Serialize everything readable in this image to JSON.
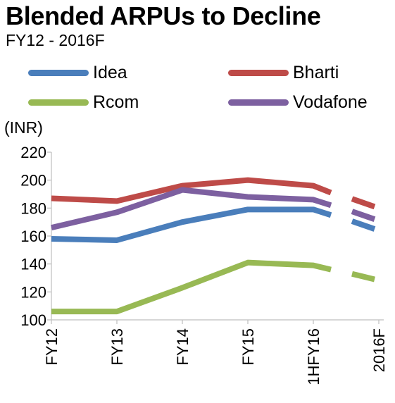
{
  "chart_data": {
    "type": "line",
    "title": "Blended ARPUs to Decline",
    "subtitle": "FY12 - 2016F",
    "ylabel": "(INR)",
    "xlabel": "",
    "ylim": [
      100,
      220
    ],
    "yticks": [
      100,
      120,
      140,
      160,
      180,
      200,
      220
    ],
    "categories": [
      "FY12",
      "FY13",
      "FY14",
      "FY15",
      "1HFY16",
      "2016F"
    ],
    "grid": false,
    "legend_position": "top",
    "series": [
      {
        "name": "Idea",
        "color": "#4a7ebb",
        "values": [
          158,
          157,
          170,
          179,
          179,
          165
        ],
        "extra": {
          "after_index": 4,
          "value": 175
        }
      },
      {
        "name": "Bharti",
        "color": "#be4b48",
        "values": [
          187,
          185,
          196,
          200,
          196,
          181
        ],
        "extra": {
          "after_index": 4,
          "value": 191
        }
      },
      {
        "name": "Rcom",
        "color": "#98b954",
        "values": [
          106,
          106,
          123,
          141,
          139,
          129
        ],
        "extra": {
          "after_index": 4,
          "value": 136
        }
      },
      {
        "name": "Vodafone",
        "color": "#7d60a0",
        "values": [
          166,
          177,
          193,
          188,
          186,
          172
        ],
        "extra": {
          "after_index": 4,
          "value": 182
        }
      }
    ]
  }
}
